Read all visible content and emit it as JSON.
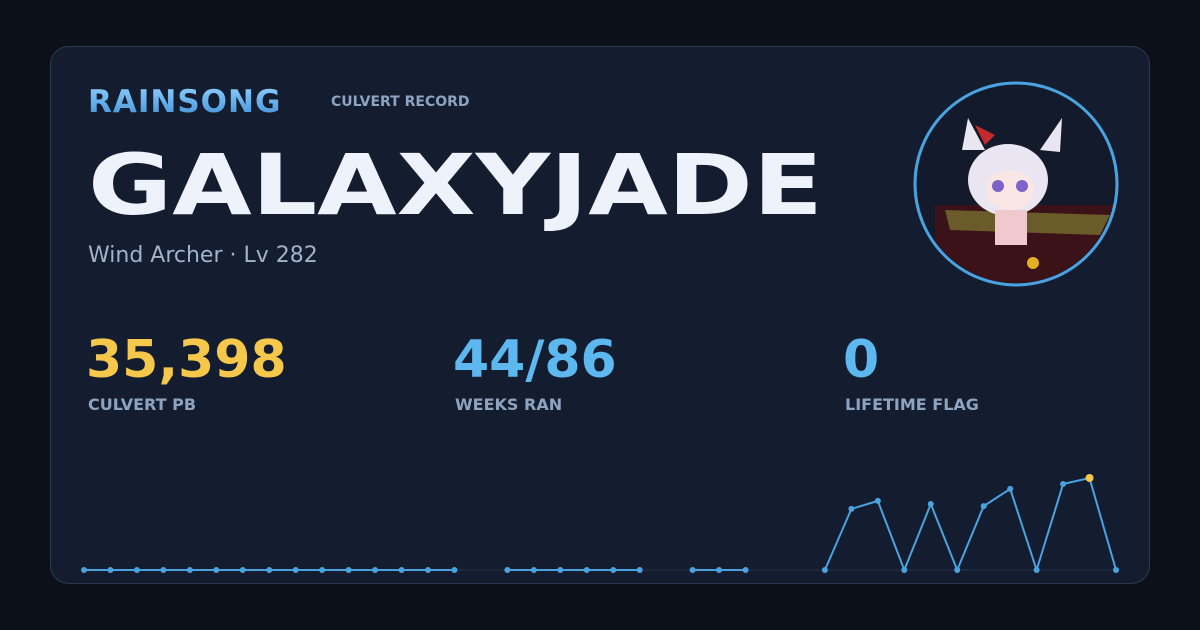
{
  "header": {
    "brand": "RAINSONG",
    "subtitle": "CULVERT RECORD",
    "name": "GALAXYJADE",
    "class_level": "Wind Archer · Lv 282"
  },
  "stats": [
    {
      "value": "35,398",
      "label": "CULVERT PB",
      "color": "#f5c84c"
    },
    {
      "value": "44/86",
      "label": "WEEKS RAN",
      "color": "#5cb8ee"
    },
    {
      "value": "0",
      "label": "LIFETIME FLAG",
      "color": "#5cb8ee"
    }
  ],
  "chart_data": {
    "type": "line",
    "color": "#4aa3df",
    "highlight_color": "#f5c84c",
    "categories": [
      null,
      null,
      null,
      null,
      null,
      null,
      null,
      null,
      null,
      null,
      null,
      null,
      null,
      null,
      null,
      null,
      null,
      null,
      null,
      null,
      null,
      null,
      null,
      null,
      null,
      null,
      null,
      null,
      null,
      null,
      null,
      null,
      null,
      null,
      null,
      null,
      null,
      null,
      null,
      null
    ],
    "values": [
      0,
      0,
      0,
      0,
      0,
      0,
      0,
      0,
      0,
      0,
      0,
      0,
      0,
      0,
      0,
      null,
      0,
      0,
      0,
      0,
      0,
      0,
      null,
      0,
      0,
      0,
      null,
      null,
      0,
      23500,
      26600,
      0,
      25400,
      0,
      24600,
      31200,
      0,
      33100,
      35398,
      0
    ]
  }
}
